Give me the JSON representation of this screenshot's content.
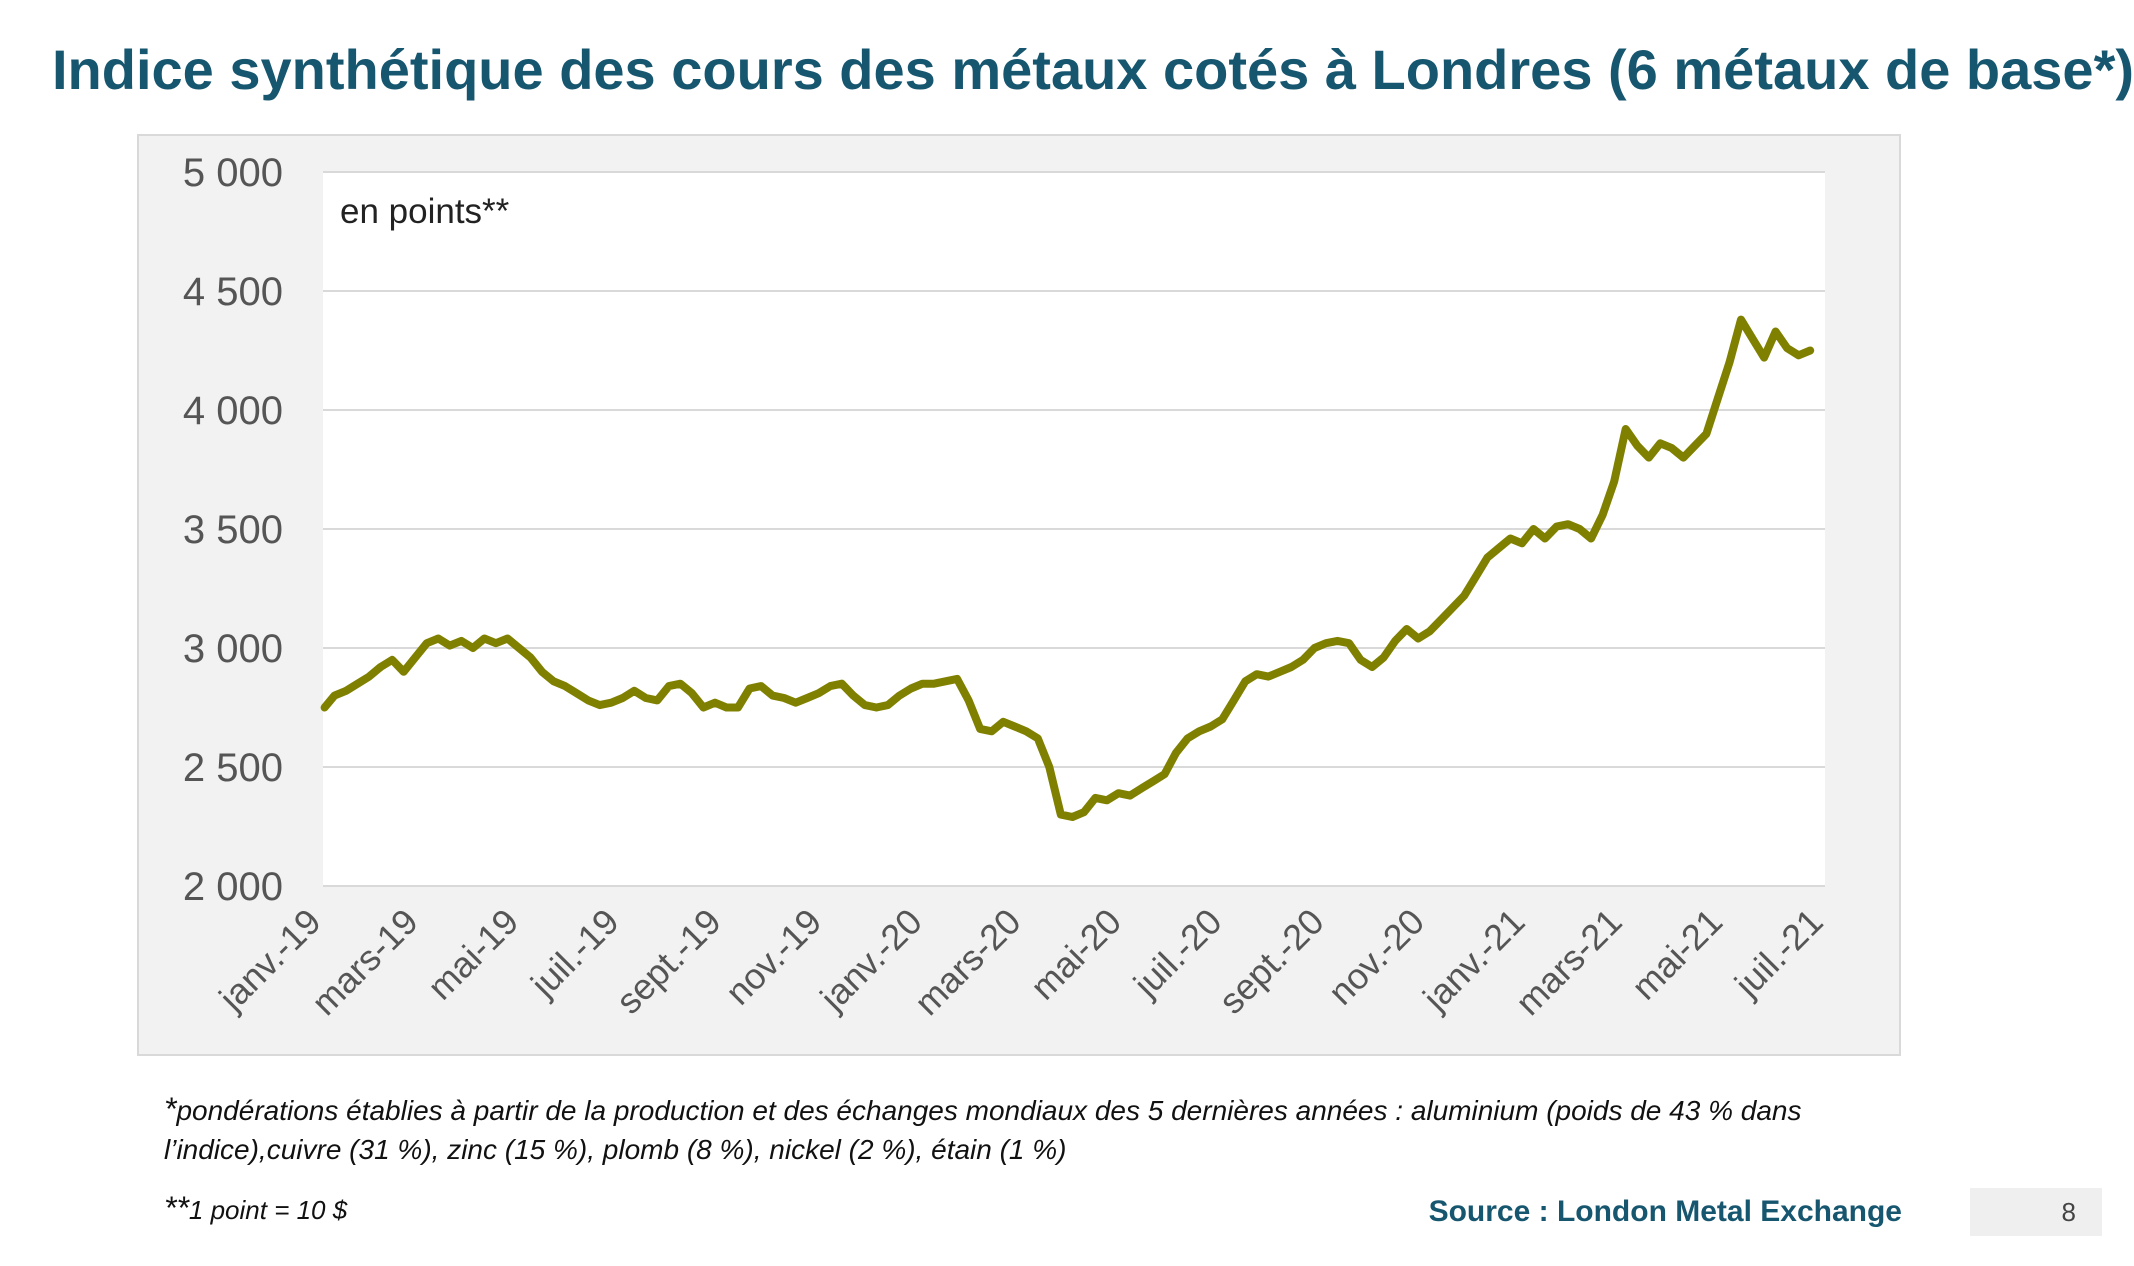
{
  "title": "Indice synthétique des cours des métaux cotés à Londres (6 métaux de base*)",
  "colors": {
    "title": "#17566f",
    "series": "#808000",
    "plot_background": "#ffffff",
    "frame_background": "#f2f2f2",
    "gridline": "#d9d9d9"
  },
  "chart_data": {
    "type": "line",
    "title": "",
    "unit_label": "en points**",
    "xlabel": "",
    "ylabel": "",
    "ylim": [
      2000,
      5000
    ],
    "yticks": [
      2000,
      2500,
      3000,
      3500,
      4000,
      4500,
      5000
    ],
    "ytick_labels": [
      "2 000",
      "2 500",
      "3 000",
      "3 500",
      "4 000",
      "4 500",
      "5 000"
    ],
    "xlim": [
      "2019-01-01",
      "2021-07-01"
    ],
    "xticks": [
      "2019-01-01",
      "2019-03-01",
      "2019-05-01",
      "2019-07-01",
      "2019-09-01",
      "2019-11-01",
      "2020-01-01",
      "2020-03-01",
      "2020-05-01",
      "2020-07-01",
      "2020-09-01",
      "2020-11-01",
      "2021-01-01",
      "2021-03-01",
      "2021-05-01",
      "2021-07-01"
    ],
    "xtick_labels": [
      "janv.-19",
      "mars-19",
      "mai-19",
      "juil.-19",
      "sept.-19",
      "nov.-19",
      "janv.-20",
      "mars-20",
      "mai-20",
      "juil.-20",
      "sept.-20",
      "nov.-20",
      "janv.-21",
      "mars-21",
      "mai-21",
      "juil.-21"
    ],
    "grid": "horizontal",
    "legend": "none",
    "series": [
      {
        "color": "#808000",
        "points": [
          [
            "2019-01-02",
            2750
          ],
          [
            "2019-01-08",
            2800
          ],
          [
            "2019-01-15",
            2820
          ],
          [
            "2019-01-22",
            2850
          ],
          [
            "2019-01-29",
            2880
          ],
          [
            "2019-02-05",
            2920
          ],
          [
            "2019-02-12",
            2950
          ],
          [
            "2019-02-19",
            2900
          ],
          [
            "2019-02-26",
            2960
          ],
          [
            "2019-03-05",
            3020
          ],
          [
            "2019-03-12",
            3040
          ],
          [
            "2019-03-19",
            3010
          ],
          [
            "2019-03-26",
            3030
          ],
          [
            "2019-04-02",
            3000
          ],
          [
            "2019-04-09",
            3040
          ],
          [
            "2019-04-16",
            3020
          ],
          [
            "2019-04-23",
            3040
          ],
          [
            "2019-04-30",
            3000
          ],
          [
            "2019-05-07",
            2960
          ],
          [
            "2019-05-14",
            2900
          ],
          [
            "2019-05-21",
            2860
          ],
          [
            "2019-05-28",
            2840
          ],
          [
            "2019-06-04",
            2810
          ],
          [
            "2019-06-11",
            2780
          ],
          [
            "2019-06-18",
            2760
          ],
          [
            "2019-06-25",
            2770
          ],
          [
            "2019-07-02",
            2790
          ],
          [
            "2019-07-09",
            2820
          ],
          [
            "2019-07-16",
            2790
          ],
          [
            "2019-07-23",
            2780
          ],
          [
            "2019-07-30",
            2840
          ],
          [
            "2019-08-06",
            2850
          ],
          [
            "2019-08-13",
            2810
          ],
          [
            "2019-08-20",
            2750
          ],
          [
            "2019-08-27",
            2770
          ],
          [
            "2019-09-03",
            2750
          ],
          [
            "2019-09-10",
            2750
          ],
          [
            "2019-09-17",
            2830
          ],
          [
            "2019-09-24",
            2840
          ],
          [
            "2019-10-01",
            2800
          ],
          [
            "2019-10-08",
            2790
          ],
          [
            "2019-10-15",
            2770
          ],
          [
            "2019-10-22",
            2790
          ],
          [
            "2019-10-29",
            2810
          ],
          [
            "2019-11-05",
            2840
          ],
          [
            "2019-11-12",
            2850
          ],
          [
            "2019-11-19",
            2800
          ],
          [
            "2019-11-26",
            2760
          ],
          [
            "2019-12-03",
            2750
          ],
          [
            "2019-12-10",
            2760
          ],
          [
            "2019-12-17",
            2800
          ],
          [
            "2019-12-24",
            2830
          ],
          [
            "2019-12-31",
            2850
          ],
          [
            "2020-01-07",
            2850
          ],
          [
            "2020-01-14",
            2860
          ],
          [
            "2020-01-21",
            2870
          ],
          [
            "2020-01-28",
            2780
          ],
          [
            "2020-02-04",
            2660
          ],
          [
            "2020-02-11",
            2650
          ],
          [
            "2020-02-18",
            2690
          ],
          [
            "2020-02-25",
            2670
          ],
          [
            "2020-03-03",
            2650
          ],
          [
            "2020-03-10",
            2620
          ],
          [
            "2020-03-17",
            2500
          ],
          [
            "2020-03-24",
            2300
          ],
          [
            "2020-03-31",
            2290
          ],
          [
            "2020-04-07",
            2310
          ],
          [
            "2020-04-14",
            2370
          ],
          [
            "2020-04-21",
            2360
          ],
          [
            "2020-04-28",
            2390
          ],
          [
            "2020-05-05",
            2380
          ],
          [
            "2020-05-12",
            2410
          ],
          [
            "2020-05-19",
            2440
          ],
          [
            "2020-05-26",
            2470
          ],
          [
            "2020-06-02",
            2560
          ],
          [
            "2020-06-09",
            2620
          ],
          [
            "2020-06-16",
            2650
          ],
          [
            "2020-06-23",
            2670
          ],
          [
            "2020-06-30",
            2700
          ],
          [
            "2020-07-07",
            2780
          ],
          [
            "2020-07-14",
            2860
          ],
          [
            "2020-07-21",
            2890
          ],
          [
            "2020-07-28",
            2880
          ],
          [
            "2020-08-04",
            2900
          ],
          [
            "2020-08-11",
            2920
          ],
          [
            "2020-08-18",
            2950
          ],
          [
            "2020-08-25",
            3000
          ],
          [
            "2020-09-01",
            3020
          ],
          [
            "2020-09-08",
            3030
          ],
          [
            "2020-09-15",
            3020
          ],
          [
            "2020-09-22",
            2950
          ],
          [
            "2020-09-29",
            2920
          ],
          [
            "2020-10-06",
            2960
          ],
          [
            "2020-10-13",
            3030
          ],
          [
            "2020-10-20",
            3080
          ],
          [
            "2020-10-27",
            3040
          ],
          [
            "2020-11-03",
            3070
          ],
          [
            "2020-11-10",
            3120
          ],
          [
            "2020-11-17",
            3170
          ],
          [
            "2020-11-24",
            3220
          ],
          [
            "2020-12-01",
            3300
          ],
          [
            "2020-12-08",
            3380
          ],
          [
            "2020-12-15",
            3420
          ],
          [
            "2020-12-22",
            3460
          ],
          [
            "2020-12-29",
            3440
          ],
          [
            "2021-01-05",
            3500
          ],
          [
            "2021-01-12",
            3460
          ],
          [
            "2021-01-19",
            3510
          ],
          [
            "2021-01-26",
            3520
          ],
          [
            "2021-02-02",
            3500
          ],
          [
            "2021-02-09",
            3460
          ],
          [
            "2021-02-16",
            3560
          ],
          [
            "2021-02-23",
            3700
          ],
          [
            "2021-03-02",
            3920
          ],
          [
            "2021-03-09",
            3850
          ],
          [
            "2021-03-16",
            3800
          ],
          [
            "2021-03-23",
            3860
          ],
          [
            "2021-03-30",
            3840
          ],
          [
            "2021-04-06",
            3800
          ],
          [
            "2021-04-13",
            3850
          ],
          [
            "2021-04-20",
            3900
          ],
          [
            "2021-04-27",
            4050
          ],
          [
            "2021-05-04",
            4200
          ],
          [
            "2021-05-11",
            4380
          ],
          [
            "2021-05-18",
            4300
          ],
          [
            "2021-05-25",
            4220
          ],
          [
            "2021-06-01",
            4330
          ],
          [
            "2021-06-08",
            4260
          ],
          [
            "2021-06-15",
            4230
          ],
          [
            "2021-06-22",
            4250
          ]
        ]
      }
    ]
  },
  "footnotes": {
    "weights_mark": "*",
    "weights": "pondérations établies à partir de la production et des échanges mondiaux des 5 dernières années : aluminium (poids de 43 % dans l’indice),cuivre (31 %), zinc (15 %), plomb (8 %), nickel (2 %), étain (1 %)",
    "point_mark": "**",
    "point": "1 point = 10 $"
  },
  "source": "Source : London Metal Exchange",
  "page_number": "8"
}
